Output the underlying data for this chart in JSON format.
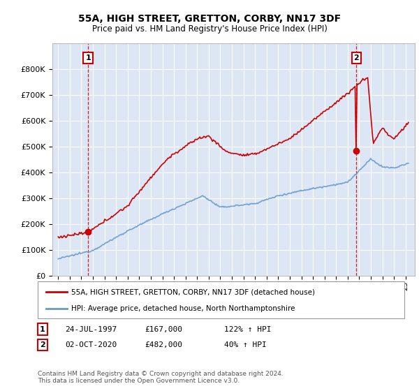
{
  "title": "55A, HIGH STREET, GRETTON, CORBY, NN17 3DF",
  "subtitle": "Price paid vs. HM Land Registry's House Price Index (HPI)",
  "property_label": "55A, HIGH STREET, GRETTON, CORBY, NN17 3DF (detached house)",
  "hpi_label": "HPI: Average price, detached house, North Northamptonshire",
  "footnote": "Contains HM Land Registry data © Crown copyright and database right 2024.\nThis data is licensed under the Open Government Licence v3.0.",
  "marker1_date": "24-JUL-1997",
  "marker1_price": "£167,000",
  "marker1_hpi": "122% ↑ HPI",
  "marker2_date": "02-OCT-2020",
  "marker2_price": "£482,000",
  "marker2_hpi": "40% ↑ HPI",
  "property_color": "#cc0000",
  "hpi_color": "#6699cc",
  "background_color": "#dce6f5",
  "grid_color": "#ffffff",
  "ylim": [
    0,
    900000
  ],
  "yticks": [
    0,
    100000,
    200000,
    300000,
    400000,
    500000,
    600000,
    700000,
    800000
  ],
  "ytick_labels": [
    "£0",
    "£100K",
    "£200K",
    "£300K",
    "£400K",
    "£500K",
    "£600K",
    "£700K",
    "£800K"
  ],
  "xmin": 1994.5,
  "xmax": 2025.8,
  "sale1_year": 1997.58,
  "sale1_price": 167000,
  "sale2_year": 2020.75,
  "sale2_price": 482000
}
